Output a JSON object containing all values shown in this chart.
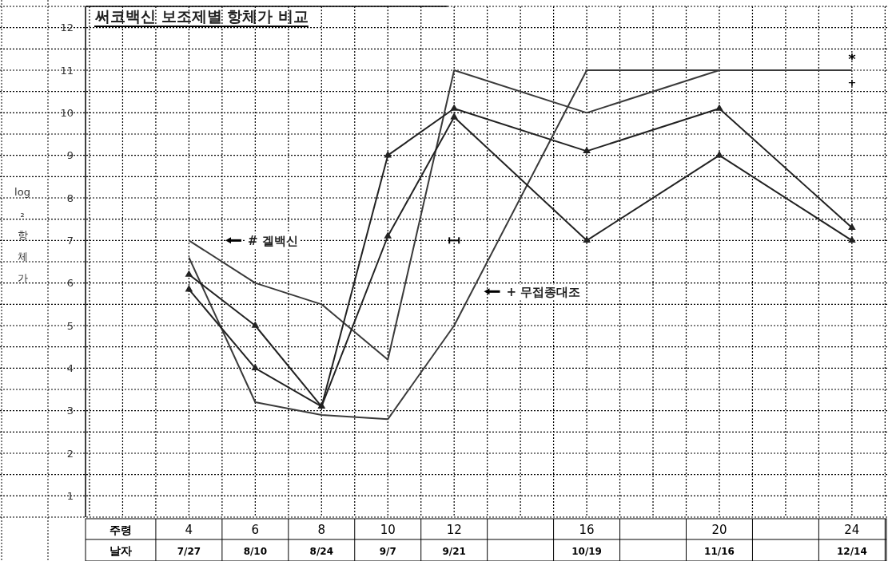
{
  "chart_data": {
    "type": "line",
    "title": "써코백신 보조제별 항체가 비교",
    "xlabel": "주령\n날자",
    "ylabel": "log₂ 항체가",
    "categories": [
      "4\n7/27",
      "6\n8/10",
      "8\n8/24",
      "10\n9/7",
      "12\n9/21",
      null,
      "16\n10/19",
      null,
      "20\n11/16",
      null,
      "24\n12/14"
    ],
    "ylim": [
      0.5,
      12.5
    ],
    "yticks": [
      1,
      2,
      3,
      4,
      5,
      6,
      7,
      8,
      9,
      10,
      11,
      12
    ],
    "grid": true,
    "series": [
      {
        "name": "# 겔백신",
        "color": "#3a3a3a",
        "values": [
          7.0,
          6.0,
          5.5,
          4.2,
          11.0,
          null,
          10.0,
          null,
          11.0,
          null,
          11.0
        ]
      },
      {
        "name": "+ 무접종대조",
        "color": "#3a3a3a",
        "values": [
          6.6,
          3.2,
          2.9,
          2.8,
          5.0,
          null,
          11.0,
          null,
          11.0,
          null,
          11.0
        ]
      },
      {
        "color": "#222222",
        "marker": "triangle",
        "values": [
          6.2,
          5.0,
          3.1,
          9.0,
          10.1,
          null,
          9.1,
          null,
          10.1,
          null,
          7.3
        ]
      },
      {
        "color": "#222222",
        "marker": "triangle",
        "values": [
          5.85,
          4.0,
          3.1,
          7.1,
          9.9,
          null,
          7.0,
          null,
          9.0,
          null,
          7.0
        ]
      }
    ],
    "annotations": [
      {
        "text": "*",
        "x": "24\n12/14",
        "y": 11
      },
      {
        "text": "+",
        "x": "24\n12/14",
        "y": 11
      }
    ]
  }
}
